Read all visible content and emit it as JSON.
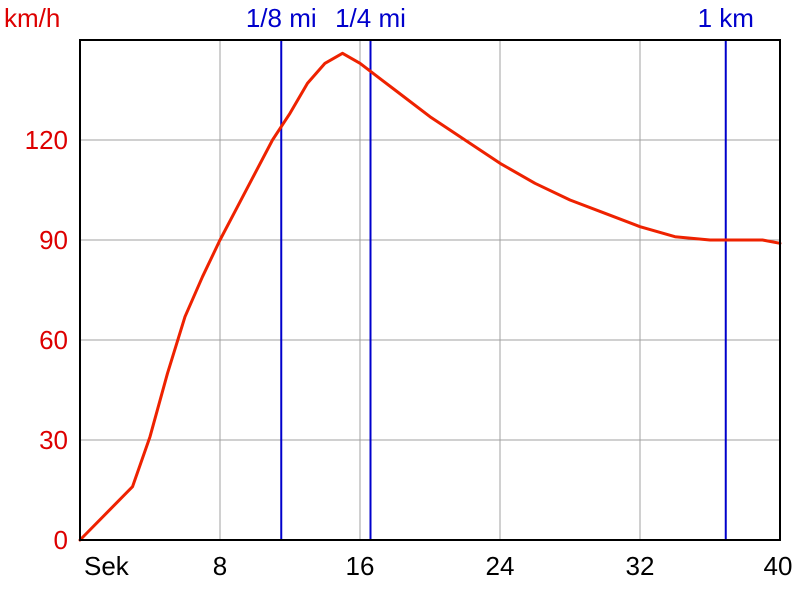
{
  "chart_data": {
    "type": "line",
    "ylabel": "km/h",
    "xlabel": "Sek",
    "xlim": [
      0,
      40
    ],
    "ylim": [
      0,
      150
    ],
    "grid": true,
    "x_ticks": [
      {
        "value": 0,
        "label": "Sek"
      },
      {
        "value": 8,
        "label": "8"
      },
      {
        "value": 16,
        "label": "16"
      },
      {
        "value": 24,
        "label": "24"
      },
      {
        "value": 32,
        "label": "32"
      },
      {
        "value": 40,
        "label": "40"
      }
    ],
    "y_ticks": [
      {
        "value": 0,
        "label": "0"
      },
      {
        "value": 30,
        "label": "30"
      },
      {
        "value": 60,
        "label": "60"
      },
      {
        "value": 90,
        "label": "90"
      },
      {
        "value": 120,
        "label": "120"
      }
    ],
    "markers": [
      {
        "x": 11.5,
        "label": "1/8 mi"
      },
      {
        "x": 16.6,
        "label": "1/4 mi"
      },
      {
        "x": 36.9,
        "label": "1 km"
      }
    ],
    "series": [
      {
        "color": "#ee2200",
        "x": [
          0,
          3,
          4,
          5,
          6,
          7,
          8,
          9,
          10,
          11,
          12,
          13,
          14,
          15,
          16,
          17,
          18,
          20,
          22,
          24,
          26,
          28,
          30,
          32,
          34,
          36,
          37,
          38,
          39,
          40
        ],
        "y": [
          0,
          16,
          31,
          50,
          67,
          79,
          90,
          100,
          110,
          120,
          128,
          137,
          143,
          146,
          143,
          139,
          135,
          127,
          120,
          113,
          107,
          102,
          98,
          94,
          91,
          90,
          90,
          90,
          90,
          89
        ]
      }
    ]
  },
  "colors": {
    "curve": "#ee2200",
    "marker": "#0000cc",
    "ytick": "#dd0000",
    "grid": "#a0a0a0",
    "frame": "#000000"
  }
}
